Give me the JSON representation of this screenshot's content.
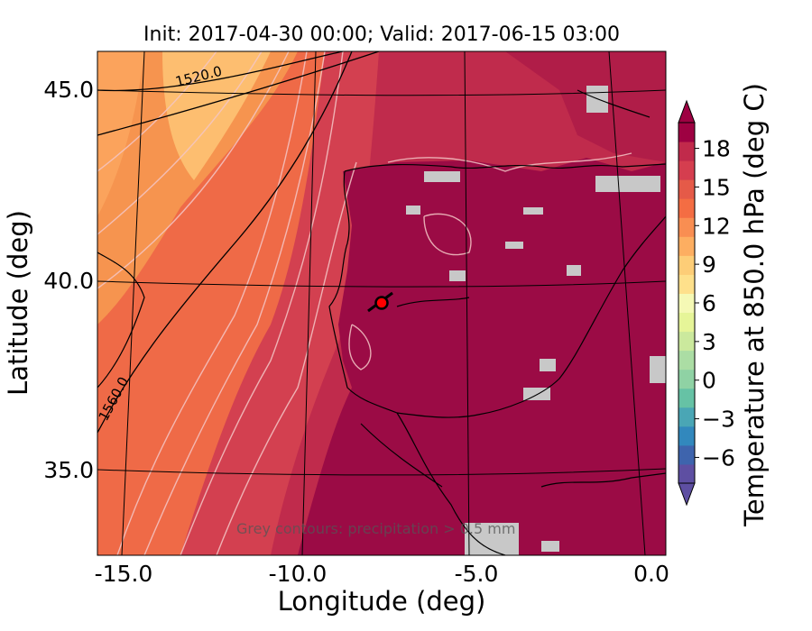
{
  "title": "Init: 2017-04-30 00:00; Valid: 2017-06-15 03:00",
  "x_axis": {
    "label": "Longitude (deg)",
    "ticks": [
      "-15.0",
      "-10.0",
      "-5.0",
      "0.0"
    ],
    "range": [
      -16,
      0
    ]
  },
  "y_axis": {
    "label": "Latitude (deg)",
    "ticks": [
      "35.0",
      "40.0",
      "45.0"
    ],
    "range": [
      33,
      46
    ]
  },
  "colorbar": {
    "label": "Temperature at 850.0 hPa (deg C)",
    "ticks": [
      "−6",
      "−3",
      "0",
      "3",
      "6",
      "9",
      "12",
      "15",
      "18"
    ],
    "range": [
      -8,
      20
    ],
    "colormap": "Spectral_r"
  },
  "contour_labels": [
    "1520.0",
    "1560.0"
  ],
  "annotation": "Grey contours: precipitation > 0.5 mm",
  "marker": {
    "lon": -7.6,
    "lat": 39.3,
    "color": "#ff0000"
  },
  "colors": {
    "hot": "#9b0b45",
    "warm": "#c43052",
    "orange": "#f36c43",
    "light_orange": "#fdbb6c",
    "precip": "#c8c8c8"
  }
}
